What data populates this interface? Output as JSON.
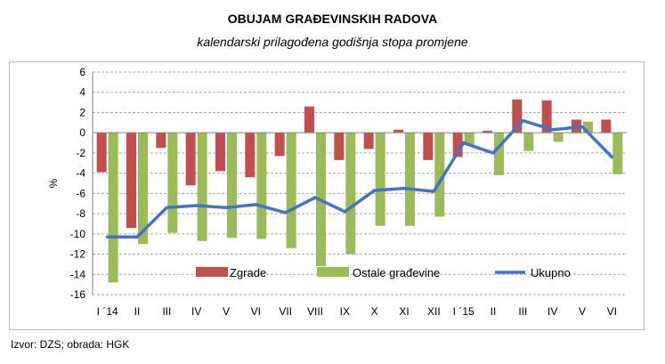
{
  "header": {
    "title": "OBUJAM GRAĐEVINSKIH RADOVA",
    "subtitle": "kalendarski prilagođena godišnja stopa promjene"
  },
  "footer": {
    "source": "Izvor: DZS; obrada: HGK"
  },
  "chart_data": {
    "type": "bar",
    "ylabel": "%",
    "ylim": [
      -16,
      6
    ],
    "yticks": [
      6,
      4,
      2,
      0,
      -2,
      -4,
      -6,
      -8,
      -10,
      -12,
      -14,
      -16
    ],
    "grid": true,
    "legend_position": "bottom-inside",
    "categories": [
      "I ´14",
      "II",
      "III",
      "IV",
      "V",
      "VI",
      "VII",
      "VIII",
      "IX",
      "X",
      "XI",
      "XII",
      "I ´15",
      "II",
      "III",
      "IV",
      "V",
      "VI"
    ],
    "series": [
      {
        "name": "Zgrade",
        "kind": "bar",
        "color": "#c0504d",
        "values": [
          -3.9,
          -9.4,
          -1.5,
          -5.2,
          -3.8,
          -4.4,
          -2.3,
          2.6,
          -2.7,
          -1.6,
          0.3,
          -2.7,
          -2.4,
          0.2,
          3.3,
          3.2,
          1.3,
          1.3
        ]
      },
      {
        "name": "Ostale građevine",
        "kind": "bar",
        "color": "#9bbb59",
        "values": [
          -14.8,
          -11.0,
          -9.9,
          -10.7,
          -10.4,
          -10.5,
          -11.4,
          -13.2,
          -12.0,
          -9.2,
          -9.2,
          -8.3,
          -1.2,
          -4.2,
          -1.8,
          -0.9,
          1.1,
          -4.1
        ]
      },
      {
        "name": "Ukupno",
        "kind": "line",
        "color": "#4472c4",
        "values": [
          -10.3,
          -10.3,
          -7.4,
          -7.2,
          -7.4,
          -7.1,
          -7.9,
          -6.4,
          -7.8,
          -5.7,
          -5.5,
          -5.8,
          -1.0,
          -2.0,
          1.2,
          0.3,
          0.6,
          -2.4
        ]
      }
    ]
  }
}
